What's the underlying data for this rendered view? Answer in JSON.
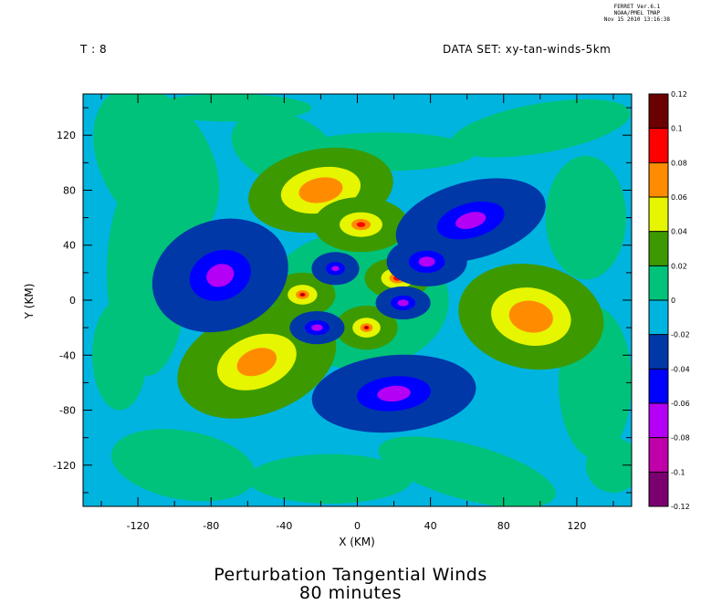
{
  "header": {
    "time_label": "T : 8",
    "dataset_label": "DATA SET: xy-tan-winds-5km",
    "stamp": [
      "FERRET Ver.6.1",
      "NOAA/PMEL TMAP",
      "Nov 15 2010 13:16:38"
    ]
  },
  "chart_data": {
    "type": "heatmap",
    "title": "Perturbation Tangential Winds",
    "subtitle": "80 minutes",
    "xlabel": "X (KM)",
    "ylabel": "Y (KM)",
    "xlim": [
      -150,
      150
    ],
    "ylim": [
      -150,
      150
    ],
    "xticks": [
      -120,
      -80,
      -40,
      0,
      40,
      80,
      120
    ],
    "yticks": [
      120,
      80,
      40,
      0,
      -40,
      -80,
      -120
    ],
    "colorbar": {
      "levels": [
        0.12,
        0.1,
        0.08,
        0.06,
        0.04,
        0.02,
        0,
        -0.02,
        -0.04,
        -0.06,
        -0.08,
        -0.1,
        -0.12
      ],
      "colors": [
        "#6b0000",
        "#ff0000",
        "#ff8c00",
        "#e6f500",
        "#3c9a00",
        "#00c27a",
        "#00b4e0",
        "#0038a8",
        "#0000ff",
        "#b400f5",
        "#c000a8",
        "#7a0070"
      ]
    },
    "grid": false,
    "features": [
      {
        "type": "positive",
        "x": -20,
        "y": 85,
        "peak": 0.1
      },
      {
        "type": "positive",
        "x": 2,
        "y": 53,
        "peak": 0.1
      },
      {
        "type": "positive",
        "x": 100,
        "y": -10,
        "peak": 0.07
      },
      {
        "type": "positive",
        "x": -55,
        "y": -45,
        "peak": 0.07
      },
      {
        "type": "positive",
        "x": -30,
        "y": 4,
        "peak": 0.12
      },
      {
        "type": "positive",
        "x": 5,
        "y": -20,
        "peak": 0.12
      },
      {
        "type": "positive",
        "x": 22,
        "y": 16,
        "peak": 0.1
      },
      {
        "type": "negative",
        "x": -75,
        "y": 18,
        "peak": -0.07
      },
      {
        "type": "negative",
        "x": 65,
        "y": 60,
        "peak": -0.07
      },
      {
        "type": "negative",
        "x": 20,
        "y": -70,
        "peak": -0.07
      },
      {
        "type": "negative",
        "x": -12,
        "y": 23,
        "peak": -0.06
      },
      {
        "type": "negative",
        "x": 25,
        "y": -2,
        "peak": -0.07
      },
      {
        "type": "negative",
        "x": -22,
        "y": -20,
        "peak": -0.07
      }
    ]
  }
}
